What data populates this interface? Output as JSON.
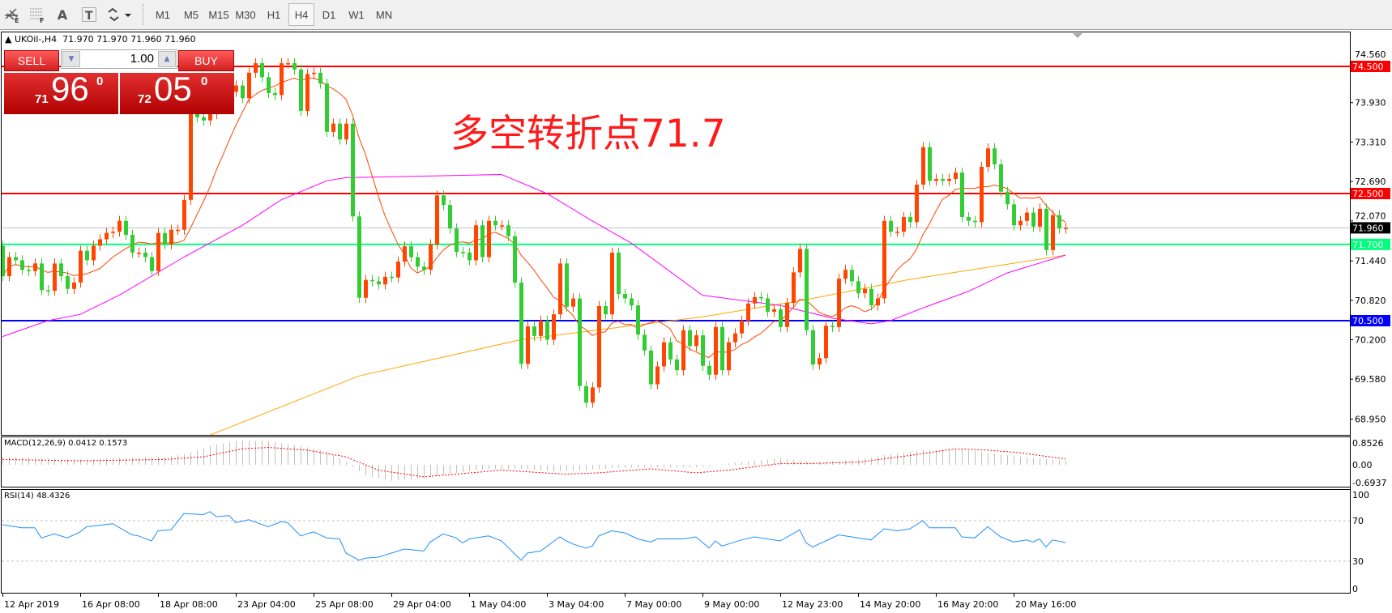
{
  "toolbar": {
    "tools": [
      {
        "name": "line-studies-icon",
        "glyph": "E"
      },
      {
        "name": "fibonacci-icon",
        "glyph": "F"
      },
      {
        "name": "text-icon",
        "glyph": "A"
      },
      {
        "name": "text-label-icon",
        "glyph": "T"
      },
      {
        "name": "arrows-icon",
        "glyph": "▾"
      }
    ],
    "periods": [
      "M1",
      "M5",
      "M15",
      "M30",
      "H1",
      "H4",
      "D1",
      "W1",
      "MN"
    ],
    "active_period": "H4"
  },
  "chart": {
    "symbol_line": "UKOil-,H4  71.970 71.970 71.960 71.960",
    "annotation": "多空转折点71.7",
    "macd_label": "MACD(12,26,9) 0.0412 0.1573",
    "rsi_label": "RSI(14) 48.4326"
  },
  "trade_panel": {
    "sell_label": "SELL",
    "buy_label": "BUY",
    "lot": "1.00",
    "sell_small": "71",
    "sell_big": "96",
    "sell_sup": "0",
    "buy_small": "72",
    "buy_big": "05",
    "buy_sup": "0"
  },
  "colors": {
    "up_candle": "#ff4500",
    "down_candle": "#32cd32",
    "resistance": "#ff0000",
    "pivot": "#00ff7f",
    "support": "#0000ff",
    "bid_line": "#c0c0c0",
    "ma_fast": "#ff4500",
    "ma_mid": "#ff00ff",
    "ma_slow": "#ffa500",
    "rsi": "#1e90ff",
    "macd_signal": "#ff0000",
    "macd_hist": "#c0c0c0"
  },
  "chart_data": {
    "type": "candlestick",
    "symbol": "UKOil-",
    "timeframe": "H4",
    "closes": [
      71.2,
      71.5,
      71.45,
      71.3,
      71.28,
      71.4,
      70.98,
      70.97,
      71.4,
      71.2,
      71.0,
      71.1,
      71.6,
      71.45,
      71.68,
      71.78,
      71.88,
      71.9,
      72.07,
      71.85,
      71.57,
      71.57,
      71.5,
      71.28,
      71.88,
      71.7,
      71.93,
      71.93,
      72.4,
      73.76,
      73.7,
      73.65,
      73.75,
      74.0,
      74.2,
      74.1,
      74.2,
      74.0,
      74.4,
      74.55,
      74.33,
      74.08,
      74.05,
      74.55,
      74.55,
      74.45,
      73.8,
      74.38,
      74.4,
      74.23,
      73.47,
      73.6,
      73.35,
      73.6,
      72.14,
      70.86,
      71.14,
      71.12,
      71.07,
      71.19,
      71.18,
      71.43,
      71.67,
      71.5,
      71.35,
      71.3,
      71.7,
      72.47,
      72.32,
      71.95,
      71.58,
      71.57,
      71.45,
      72.0,
      71.5,
      72.07,
      72.0,
      72.0,
      71.83,
      71.1,
      69.82,
      70.41,
      70.26,
      70.5,
      70.2,
      70.6,
      71.4,
      70.72,
      70.85,
      69.47,
      69.21,
      69.45,
      70.73,
      70.6,
      71.57,
      70.92,
      70.85,
      70.74,
      70.28,
      70.03,
      69.5,
      69.78,
      70.16,
      69.89,
      69.72,
      70.35,
      70.1,
      70.27,
      69.79,
      69.65,
      70.4,
      69.72,
      70.16,
      70.3,
      70.5,
      70.77,
      70.87,
      70.85,
      70.64,
      70.68,
      70.4,
      70.78,
      71.26,
      71.63,
      70.35,
      69.81,
      69.91,
      70.42,
      70.4,
      71.16,
      71.3,
      71.12,
      70.93,
      71.0,
      70.74,
      70.85,
      72.07,
      71.9,
      71.9,
      72.13,
      72.05,
      72.64,
      73.23,
      72.7,
      72.73,
      72.7,
      72.73,
      72.83,
      72.13,
      72.07,
      72.05,
      72.92,
      73.21,
      72.96,
      72.53,
      72.33,
      72.0,
      72.07,
      72.2,
      71.98,
      72.26,
      71.61,
      72.16,
      71.95,
      71.96
    ],
    "first_open": 71.68,
    "bid": 71.96,
    "levels": [
      {
        "price": 74.5,
        "label": "74.500",
        "role": "resistance"
      },
      {
        "price": 72.5,
        "label": "72.500",
        "role": "resistance"
      },
      {
        "price": 71.7,
        "label": "71.700",
        "role": "pivot"
      },
      {
        "price": 70.5,
        "label": "70.500",
        "role": "support"
      }
    ],
    "bid_label": "71.960",
    "price_ticks": [
      "74.560",
      "73.930",
      "73.310",
      "72.690",
      "72.070",
      "71.440",
      "70.820",
      "70.200",
      "69.580",
      "68.950"
    ],
    "ylim": [
      68.7,
      74.85
    ],
    "ma_mid": [
      [
        0,
        70.25
      ],
      [
        7,
        70.5
      ],
      [
        12,
        70.6
      ],
      [
        18,
        70.9
      ],
      [
        28,
        71.5
      ],
      [
        37,
        72.0
      ],
      [
        43,
        72.4
      ],
      [
        50,
        72.7
      ],
      [
        53,
        72.75
      ],
      [
        68,
        72.78
      ],
      [
        77,
        72.8
      ],
      [
        84,
        72.5
      ],
      [
        91,
        72.07
      ],
      [
        97,
        71.72
      ],
      [
        108,
        70.9
      ],
      [
        120,
        70.74
      ],
      [
        128,
        70.54
      ],
      [
        134,
        70.45
      ],
      [
        137,
        70.5
      ],
      [
        142,
        70.7
      ],
      [
        149,
        70.96
      ],
      [
        155,
        71.25
      ],
      [
        164,
        71.53
      ]
    ],
    "ma_slow": [
      [
        32,
        68.7
      ],
      [
        55,
        69.63
      ],
      [
        80,
        70.2
      ],
      [
        108,
        70.56
      ],
      [
        124,
        70.83
      ],
      [
        140,
        71.15
      ],
      [
        164,
        71.53
      ]
    ],
    "time_labels": [
      "12 Apr 2019",
      "16 Apr 08:00",
      "18 Apr 08:00",
      "23 Apr 04:00",
      "25 Apr 08:00",
      "29 Apr 04:00",
      "1 May 04:00",
      "3 May 04:00",
      "7 May 00:00",
      "9 May 00:00",
      "12 May 23:00",
      "14 May 20:00",
      "16 May 20:00",
      "20 May 16:00"
    ],
    "macd": {
      "ticks": [
        "0.8526",
        "0.00",
        "-0.6937"
      ],
      "histogram": [
        [
          0,
          0.3
        ],
        [
          6,
          0.25
        ],
        [
          12,
          0.2
        ],
        [
          18,
          0.25
        ],
        [
          25,
          0.3
        ],
        [
          28,
          0.4
        ],
        [
          32,
          0.7
        ],
        [
          36,
          0.9
        ],
        [
          40,
          0.9
        ],
        [
          45,
          0.75
        ],
        [
          50,
          0.5
        ],
        [
          53,
          0.1
        ],
        [
          56,
          -0.4
        ],
        [
          60,
          -0.6
        ],
        [
          65,
          -0.5
        ],
        [
          70,
          -0.3
        ],
        [
          75,
          -0.15
        ],
        [
          80,
          -0.15
        ],
        [
          85,
          -0.25
        ],
        [
          90,
          -0.2
        ],
        [
          95,
          -0.1
        ],
        [
          100,
          -0.1
        ],
        [
          107,
          -0.1
        ],
        [
          112,
          0.05
        ],
        [
          120,
          0.25
        ],
        [
          125,
          0.1
        ],
        [
          132,
          0.2
        ],
        [
          137,
          0.4
        ],
        [
          142,
          0.55
        ],
        [
          147,
          0.58
        ],
        [
          152,
          0.45
        ],
        [
          157,
          0.3
        ],
        [
          164,
          0.15
        ]
      ],
      "signal": [
        [
          0,
          0.2
        ],
        [
          12,
          0.15
        ],
        [
          25,
          0.2
        ],
        [
          31,
          0.3
        ],
        [
          37,
          0.6
        ],
        [
          41,
          0.65
        ],
        [
          47,
          0.55
        ],
        [
          53,
          0.3
        ],
        [
          58,
          -0.2
        ],
        [
          65,
          -0.45
        ],
        [
          70,
          -0.35
        ],
        [
          77,
          -0.2
        ],
        [
          87,
          -0.35
        ],
        [
          92,
          -0.3
        ],
        [
          100,
          -0.15
        ],
        [
          107,
          -0.3
        ],
        [
          112,
          -0.2
        ],
        [
          120,
          0.05
        ],
        [
          125,
          0.05
        ],
        [
          132,
          0.1
        ],
        [
          140,
          0.35
        ],
        [
          147,
          0.6
        ],
        [
          152,
          0.55
        ],
        [
          157,
          0.45
        ],
        [
          164,
          0.22
        ]
      ]
    },
    "rsi": {
      "ticks": [
        "100",
        "70",
        "30",
        "0"
      ],
      "levels": [
        70,
        30
      ],
      "points": [
        [
          0,
          66
        ],
        [
          3,
          63
        ],
        [
          5,
          63
        ],
        [
          6,
          53
        ],
        [
          8,
          57
        ],
        [
          10,
          53
        ],
        [
          12,
          59
        ],
        [
          13,
          64
        ],
        [
          17,
          67
        ],
        [
          20,
          56
        ],
        [
          21,
          55
        ],
        [
          23,
          50
        ],
        [
          24,
          60
        ],
        [
          26,
          61
        ],
        [
          28,
          77
        ],
        [
          31,
          76
        ],
        [
          32,
          79
        ],
        [
          33,
          74
        ],
        [
          35,
          75
        ],
        [
          36,
          68
        ],
        [
          38,
          71
        ],
        [
          41,
          64
        ],
        [
          43,
          69
        ],
        [
          44,
          68
        ],
        [
          46,
          55
        ],
        [
          48,
          59
        ],
        [
          50,
          53
        ],
        [
          52,
          52
        ],
        [
          53,
          38
        ],
        [
          55,
          31
        ],
        [
          56,
          33
        ],
        [
          58,
          34
        ],
        [
          62,
          42
        ],
        [
          65,
          40
        ],
        [
          66,
          49
        ],
        [
          68,
          57
        ],
        [
          70,
          53
        ],
        [
          71,
          48
        ],
        [
          72,
          52
        ],
        [
          75,
          55
        ],
        [
          77,
          50
        ],
        [
          80,
          31
        ],
        [
          81,
          38
        ],
        [
          83,
          40
        ],
        [
          86,
          54
        ],
        [
          87,
          50
        ],
        [
          88,
          47
        ],
        [
          90,
          43
        ],
        [
          91,
          45
        ],
        [
          92,
          55
        ],
        [
          94,
          60
        ],
        [
          96,
          58
        ],
        [
          98,
          52
        ],
        [
          100,
          49
        ],
        [
          101,
          52
        ],
        [
          105,
          52
        ],
        [
          107,
          54
        ],
        [
          109,
          43
        ],
        [
          110,
          50
        ],
        [
          111,
          45
        ],
        [
          114,
          51
        ],
        [
          116,
          54
        ],
        [
          120,
          50
        ],
        [
          123,
          61
        ],
        [
          124,
          48
        ],
        [
          125,
          44
        ],
        [
          127,
          50
        ],
        [
          129,
          56
        ],
        [
          132,
          53
        ],
        [
          134,
          51
        ],
        [
          136,
          62
        ],
        [
          138,
          60
        ],
        [
          140,
          62
        ],
        [
          142,
          70
        ],
        [
          143,
          63
        ],
        [
          147,
          63
        ],
        [
          148,
          54
        ],
        [
          150,
          53
        ],
        [
          152,
          64
        ],
        [
          154,
          54
        ],
        [
          156,
          49
        ],
        [
          158,
          51
        ],
        [
          159,
          49
        ],
        [
          160,
          52
        ],
        [
          161,
          44
        ],
        [
          162,
          51
        ],
        [
          164,
          48.4
        ]
      ]
    }
  }
}
